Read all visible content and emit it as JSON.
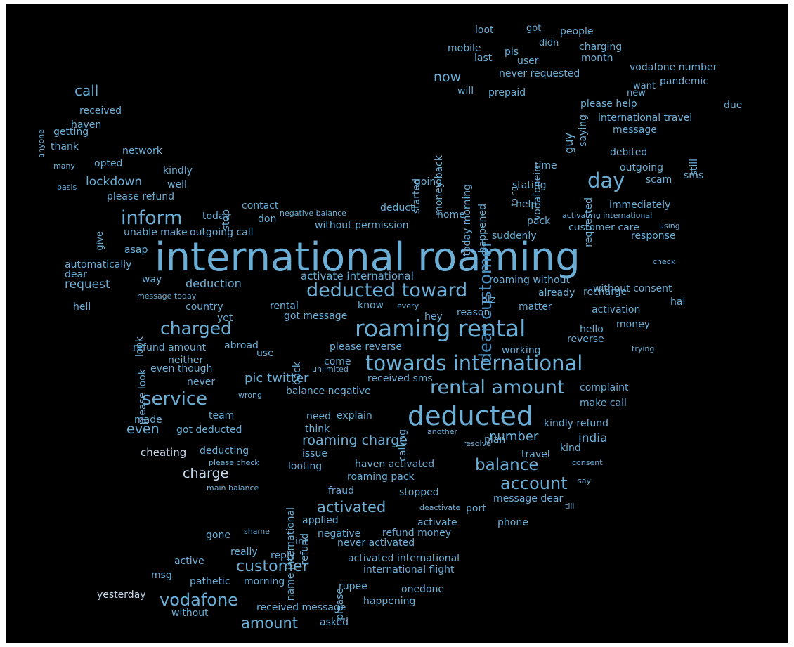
{
  "colors": {
    "background": "#000000",
    "palette": [
      "#6BAED6",
      "#4A8FC0",
      "#9ECAE1",
      "#C6DBEF",
      "#2F6FA8",
      "#85BCDB"
    ]
  },
  "words": [
    {
      "text": "international roaming",
      "c": 0
    },
    {
      "text": "deducted",
      "c": 0
    },
    {
      "text": "roaming rental",
      "c": 0
    },
    {
      "text": "towards international",
      "c": 0
    },
    {
      "text": "deducted toward",
      "c": 0
    },
    {
      "text": "rental amount",
      "c": 0
    },
    {
      "text": "dear customer",
      "c": 1
    },
    {
      "text": "day",
      "c": 0
    },
    {
      "text": "inform",
      "c": 0
    },
    {
      "text": "charged",
      "c": 0
    },
    {
      "text": "service",
      "c": 0
    },
    {
      "text": "account",
      "c": 0
    },
    {
      "text": "balance",
      "c": 0
    },
    {
      "text": "vodafone",
      "c": 0
    },
    {
      "text": "customer",
      "c": 0
    },
    {
      "text": "amount",
      "c": 0
    },
    {
      "text": "activated",
      "c": 0
    },
    {
      "text": "roaming charge",
      "c": 0
    },
    {
      "text": "charge",
      "c": 3
    },
    {
      "text": "even",
      "c": 0
    },
    {
      "text": "call",
      "c": 0
    },
    {
      "text": "now",
      "c": 0
    },
    {
      "text": "number",
      "c": 0
    },
    {
      "text": "india",
      "c": 0
    },
    {
      "text": "pic twitter",
      "c": 0
    },
    {
      "text": "request",
      "c": 0
    },
    {
      "text": "lockdown",
      "c": 0
    },
    {
      "text": "deduction",
      "c": 0
    },
    {
      "text": "activate international",
      "c": 0
    },
    {
      "text": "loot",
      "c": 0
    },
    {
      "text": "got",
      "c": 0
    },
    {
      "text": "people",
      "c": 0
    },
    {
      "text": "didn",
      "c": 0
    },
    {
      "text": "mobile",
      "c": 0
    },
    {
      "text": "pls",
      "c": 0
    },
    {
      "text": "charging",
      "c": 0
    },
    {
      "text": "last",
      "c": 0
    },
    {
      "text": "user",
      "c": 0
    },
    {
      "text": "month",
      "c": 0
    },
    {
      "text": "vodafone number",
      "c": 0
    },
    {
      "text": "never requested",
      "c": 0
    },
    {
      "text": "want",
      "c": 0
    },
    {
      "text": "pandemic",
      "c": 0
    },
    {
      "text": "will",
      "c": 0
    },
    {
      "text": "prepaid",
      "c": 0
    },
    {
      "text": "new",
      "c": 0
    },
    {
      "text": "due",
      "c": 0
    },
    {
      "text": "please help",
      "c": 0
    },
    {
      "text": "international travel",
      "c": 0
    },
    {
      "text": "message",
      "c": 0
    },
    {
      "text": "received",
      "c": 0
    },
    {
      "text": "haven",
      "c": 0
    },
    {
      "text": "getting",
      "c": 0
    },
    {
      "text": "anyone",
      "c": 0
    },
    {
      "text": "thank",
      "c": 0
    },
    {
      "text": "network",
      "c": 0
    },
    {
      "text": "many",
      "c": 0
    },
    {
      "text": "opted",
      "c": 0
    },
    {
      "text": "kindly",
      "c": 0
    },
    {
      "text": "basis",
      "c": 0
    },
    {
      "text": "well",
      "c": 0
    },
    {
      "text": "please refund",
      "c": 0
    },
    {
      "text": "contact",
      "c": 0
    },
    {
      "text": "stop",
      "c": 0
    },
    {
      "text": "give",
      "c": 0
    },
    {
      "text": "today",
      "c": 0
    },
    {
      "text": "don",
      "c": 0
    },
    {
      "text": "unable make",
      "c": 0
    },
    {
      "text": "outgoing call",
      "c": 0
    },
    {
      "text": "without permission",
      "c": 0
    },
    {
      "text": "negative balance",
      "c": 0
    },
    {
      "text": "deduct",
      "c": 0
    },
    {
      "text": "home",
      "c": 0
    },
    {
      "text": "going",
      "c": 0
    },
    {
      "text": "started",
      "c": 0
    },
    {
      "text": "money back",
      "c": 0
    },
    {
      "text": "today morning",
      "c": 0
    },
    {
      "text": "happened",
      "c": 0
    },
    {
      "text": "vodafonein",
      "c": 0
    },
    {
      "text": "guy",
      "c": 0
    },
    {
      "text": "saying",
      "c": 0
    },
    {
      "text": "thing",
      "c": 0
    },
    {
      "text": "time",
      "c": 0
    },
    {
      "text": "stating",
      "c": 0
    },
    {
      "text": "requested",
      "c": 0
    },
    {
      "text": "debited",
      "c": 0
    },
    {
      "text": "still",
      "c": 0
    },
    {
      "text": "outgoing",
      "c": 0
    },
    {
      "text": "scam",
      "c": 0
    },
    {
      "text": "sms",
      "c": 0
    },
    {
      "text": "help",
      "c": 0
    },
    {
      "text": "activating international",
      "c": 0
    },
    {
      "text": "immediately",
      "c": 0
    },
    {
      "text": "pack",
      "c": 0
    },
    {
      "text": "using",
      "c": 0
    },
    {
      "text": "suddenly",
      "c": 0
    },
    {
      "text": "customer care",
      "c": 0
    },
    {
      "text": "response",
      "c": 0
    },
    {
      "text": "asap",
      "c": 0
    },
    {
      "text": "check",
      "c": 0
    },
    {
      "text": "automatically",
      "c": 0
    },
    {
      "text": "dear",
      "c": 0
    },
    {
      "text": "way",
      "c": 0
    },
    {
      "text": "roaming without",
      "c": 0
    },
    {
      "text": "already",
      "c": 0
    },
    {
      "text": "without consent",
      "c": 0
    },
    {
      "text": "recharge",
      "c": 0
    },
    {
      "text": "hai",
      "c": 0
    },
    {
      "text": "message today",
      "c": 0
    },
    {
      "text": "hell",
      "c": 0
    },
    {
      "text": "look",
      "c": 0
    },
    {
      "text": "country",
      "c": 0
    },
    {
      "text": "rental",
      "c": 0
    },
    {
      "text": "know",
      "c": 0
    },
    {
      "text": "every",
      "c": 0
    },
    {
      "text": "plz",
      "c": 0
    },
    {
      "text": "matter",
      "c": 0
    },
    {
      "text": "activation",
      "c": 0
    },
    {
      "text": "got message",
      "c": 0
    },
    {
      "text": "hey",
      "c": 0
    },
    {
      "text": "reason",
      "c": 0
    },
    {
      "text": "yet",
      "c": 0
    },
    {
      "text": "hello",
      "c": 0
    },
    {
      "text": "money",
      "c": 0
    },
    {
      "text": "please look",
      "c": 0
    },
    {
      "text": "refund amount",
      "c": 0
    },
    {
      "text": "abroad",
      "c": 0
    },
    {
      "text": "use",
      "c": 0
    },
    {
      "text": "back",
      "c": 0
    },
    {
      "text": "please reverse",
      "c": 0
    },
    {
      "text": "reverse",
      "c": 0
    },
    {
      "text": "working",
      "c": 0
    },
    {
      "text": "trying",
      "c": 0
    },
    {
      "text": "neither",
      "c": 0
    },
    {
      "text": "come",
      "c": 0
    },
    {
      "text": "even though",
      "c": 0
    },
    {
      "text": "unlimited",
      "c": 0
    },
    {
      "text": "never",
      "c": 0
    },
    {
      "text": "received sms",
      "c": 0
    },
    {
      "text": "complaint",
      "c": 0
    },
    {
      "text": "balance negative",
      "c": 0
    },
    {
      "text": "wrong",
      "c": 0
    },
    {
      "text": "make call",
      "c": 0
    },
    {
      "text": "team",
      "c": 0
    },
    {
      "text": "need",
      "c": 0
    },
    {
      "text": "explain",
      "c": 0
    },
    {
      "text": "calling",
      "c": 0
    },
    {
      "text": "made",
      "c": 0
    },
    {
      "text": "got deducted",
      "c": 0
    },
    {
      "text": "think",
      "c": 0
    },
    {
      "text": "kindly refund",
      "c": 0
    },
    {
      "text": "another",
      "c": 0
    },
    {
      "text": "plan",
      "c": 0
    },
    {
      "text": "cheating",
      "c": 3
    },
    {
      "text": "deducting",
      "c": 0
    },
    {
      "text": "issue",
      "c": 0
    },
    {
      "text": "resolve",
      "c": 0
    },
    {
      "text": "travel",
      "c": 0
    },
    {
      "text": "kind",
      "c": 0
    },
    {
      "text": "please check",
      "c": 0
    },
    {
      "text": "looting",
      "c": 0
    },
    {
      "text": "haven activated",
      "c": 0
    },
    {
      "text": "consent",
      "c": 0
    },
    {
      "text": "roaming pack",
      "c": 0
    },
    {
      "text": "say",
      "c": 0
    },
    {
      "text": "main balance",
      "c": 0
    },
    {
      "text": "name international",
      "c": 0
    },
    {
      "text": "fraud",
      "c": 0
    },
    {
      "text": "stopped",
      "c": 0
    },
    {
      "text": "message dear",
      "c": 0
    },
    {
      "text": "till",
      "c": 0
    },
    {
      "text": "deactivate",
      "c": 0
    },
    {
      "text": "port",
      "c": 0
    },
    {
      "text": "refund",
      "c": 0
    },
    {
      "text": "applied",
      "c": 0
    },
    {
      "text": "activate",
      "c": 0
    },
    {
      "text": "phone",
      "c": 0
    },
    {
      "text": "shame",
      "c": 0
    },
    {
      "text": "negative",
      "c": 0
    },
    {
      "text": "refund money",
      "c": 0
    },
    {
      "text": "gone",
      "c": 0
    },
    {
      "text": "inr",
      "c": 0
    },
    {
      "text": "never activated",
      "c": 0
    },
    {
      "text": "really",
      "c": 0
    },
    {
      "text": "reply",
      "c": 0
    },
    {
      "text": "please",
      "c": 0
    },
    {
      "text": "activated international",
      "c": 0
    },
    {
      "text": "active",
      "c": 0
    },
    {
      "text": "international flight",
      "c": 0
    },
    {
      "text": "msg",
      "c": 0
    },
    {
      "text": "pathetic",
      "c": 0
    },
    {
      "text": "morning",
      "c": 0
    },
    {
      "text": "rupee",
      "c": 0
    },
    {
      "text": "onedone",
      "c": 0
    },
    {
      "text": "happening",
      "c": 0
    },
    {
      "text": "yesterday",
      "c": 3
    },
    {
      "text": "received message",
      "c": 0
    },
    {
      "text": "without",
      "c": 0
    },
    {
      "text": "asked",
      "c": 0
    }
  ]
}
